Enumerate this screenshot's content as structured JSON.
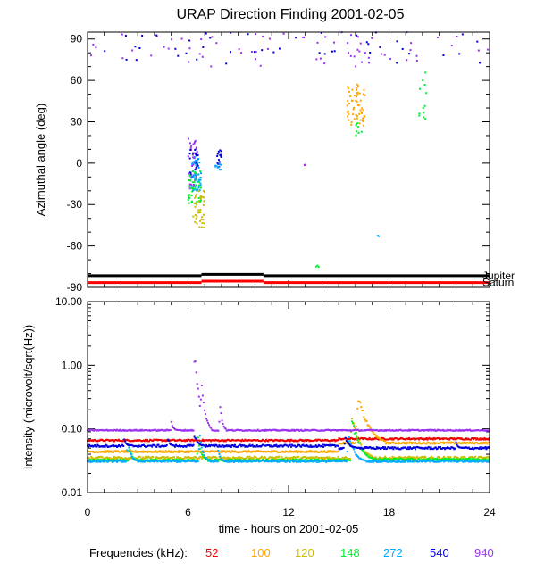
{
  "chart_data": [
    {
      "type": "scatter",
      "title": "URAP Direction Finding  2001-02-05",
      "xlabel": "",
      "ylabel": "Azimuthal angle (deg)",
      "xlim": [
        0,
        24
      ],
      "ylim": [
        -90,
        95
      ],
      "xticks": [
        0,
        6,
        12,
        18,
        24
      ],
      "yticks": [
        -90,
        -60,
        -30,
        0,
        30,
        60,
        90
      ],
      "ytick_labels": [
        "-90",
        "-60",
        "-30",
        "0",
        "30",
        "60",
        "90"
      ],
      "reference_lines": [
        {
          "name": "Jupiter",
          "color": "#000000",
          "segments": [
            [
              0,
              6.8,
              -81.5
            ],
            [
              6.8,
              10.5,
              -80.5
            ],
            [
              10.5,
              24,
              -81.5
            ]
          ]
        },
        {
          "name": "Saturn",
          "color": "#ff0000",
          "segments": [
            [
              0,
              6.8,
              -86.5
            ],
            [
              6.8,
              10.5,
              -85.5
            ],
            [
              10.5,
              24,
              -86.5
            ]
          ]
        }
      ],
      "clusters": [
        {
          "freq": "940",
          "x": [
            0,
            24
          ],
          "y": [
            70,
            95
          ],
          "n": 70
        },
        {
          "freq": "540",
          "x": [
            0,
            24
          ],
          "y": [
            72,
            95
          ],
          "n": 45
        },
        {
          "freq": "940",
          "x": [
            6.0,
            6.6
          ],
          "y": [
            -20,
            18
          ],
          "n": 40
        },
        {
          "freq": "540",
          "x": [
            6.1,
            6.6
          ],
          "y": [
            -10,
            10
          ],
          "n": 25
        },
        {
          "freq": "148",
          "x": [
            6.0,
            6.8
          ],
          "y": [
            -30,
            -5
          ],
          "n": 45
        },
        {
          "freq": "272",
          "x": [
            6.2,
            6.8
          ],
          "y": [
            -20,
            5
          ],
          "n": 35
        },
        {
          "freq": "120",
          "x": [
            6.3,
            7.0
          ],
          "y": [
            -47,
            -20
          ],
          "n": 40
        },
        {
          "freq": "540",
          "x": [
            7.7,
            8.0
          ],
          "y": [
            -5,
            10
          ],
          "n": 15
        },
        {
          "freq": "272",
          "x": [
            7.6,
            8.0
          ],
          "y": [
            -5,
            0
          ],
          "n": 10
        },
        {
          "freq": "100",
          "x": [
            15.5,
            16.6
          ],
          "y": [
            27,
            58
          ],
          "n": 60
        },
        {
          "freq": "148",
          "x": [
            19.8,
            20.3
          ],
          "y": [
            32,
            70
          ],
          "n": 12
        },
        {
          "freq": "148",
          "x": [
            16.0,
            16.4
          ],
          "y": [
            20,
            30
          ],
          "n": 8
        },
        {
          "freq": "940",
          "x": [
            12.9,
            13.0
          ],
          "y": [
            -2,
            0
          ],
          "n": 3
        },
        {
          "freq": "272",
          "x": [
            17.3,
            17.5
          ],
          "y": [
            -53,
            -52
          ],
          "n": 2
        },
        {
          "freq": "148",
          "x": [
            13.6,
            13.8
          ],
          "y": [
            -76,
            -74
          ],
          "n": 3
        }
      ]
    },
    {
      "type": "line",
      "title": "",
      "xlabel": "time - hours on 2001-02-05",
      "ylabel": "Intensity (microvolt/sqrt(Hz))",
      "xlim": [
        0,
        24
      ],
      "ylim": [
        0.01,
        10.0
      ],
      "yscale": "log",
      "xticks": [
        0,
        6,
        12,
        18,
        24
      ],
      "xtick_labels": [
        "0",
        "6",
        "12",
        "18",
        "24"
      ],
      "yticks": [
        0.01,
        0.1,
        1.0,
        10.0
      ],
      "ytick_labels": [
        "0.01",
        "0.10",
        "1.00",
        "10.00"
      ],
      "series": [
        {
          "name": "52",
          "color": "#ee0000",
          "baseline": 0.066,
          "after": 0.07,
          "peaks": [],
          "noise": 0.03
        },
        {
          "name": "100",
          "color": "#ffa500",
          "baseline": 0.044,
          "after": 0.06,
          "peaks": [
            [
              16.2,
              0.28,
              0.4
            ]
          ],
          "noise": 0.03
        },
        {
          "name": "120",
          "color": "#ccbb00",
          "baseline": 0.035,
          "after": 0.035,
          "peaks": [
            [
              15.8,
              0.15,
              0.3
            ]
          ],
          "noise": 0.05
        },
        {
          "name": "148",
          "color": "#00ee33",
          "baseline": 0.032,
          "after": 0.033,
          "peaks": [
            [
              2.5,
              0.055,
              0.12
            ],
            [
              6.6,
              0.07,
              0.15
            ],
            [
              15.8,
              0.13,
              0.3
            ]
          ],
          "noise": 0.04
        },
        {
          "name": "272",
          "color": "#00aaff",
          "baseline": 0.031,
          "after": 0.031,
          "peaks": [
            [
              2.4,
              0.06,
              0.15
            ],
            [
              6.7,
              0.08,
              0.15
            ],
            [
              7.8,
              0.05,
              0.1
            ],
            [
              15.6,
              0.08,
              0.25
            ]
          ],
          "noise": 0.03
        },
        {
          "name": "540",
          "color": "#0000dd",
          "baseline": 0.054,
          "after": 0.05,
          "peaks": [
            [
              2.2,
              0.07,
              0.1
            ],
            [
              4.8,
              0.07,
              0.1
            ],
            [
              6.4,
              0.08,
              0.15
            ],
            [
              15.4,
              0.07,
              0.2
            ],
            [
              22.0,
              0.06,
              0.1
            ]
          ],
          "noise": 0.04
        },
        {
          "name": "940",
          "color": "#9933ee",
          "baseline": 0.095,
          "after": 0.095,
          "peaks": [
            [
              6.4,
              1.3,
              0.15
            ],
            [
              6.8,
              0.5,
              0.15
            ],
            [
              7.9,
              0.25,
              0.1
            ],
            [
              5.0,
              0.13,
              0.1
            ]
          ],
          "noise": 0.02
        }
      ]
    }
  ],
  "legend": {
    "title": "Frequencies (kHz):",
    "items": [
      {
        "label": "52",
        "color": "#ee0000"
      },
      {
        "label": "100",
        "color": "#ffa500"
      },
      {
        "label": "120",
        "color": "#ccbb00"
      },
      {
        "label": "148",
        "color": "#00ee33"
      },
      {
        "label": "272",
        "color": "#00aaff"
      },
      {
        "label": "540",
        "color": "#0000dd"
      },
      {
        "label": "940",
        "color": "#9933ee"
      }
    ]
  }
}
